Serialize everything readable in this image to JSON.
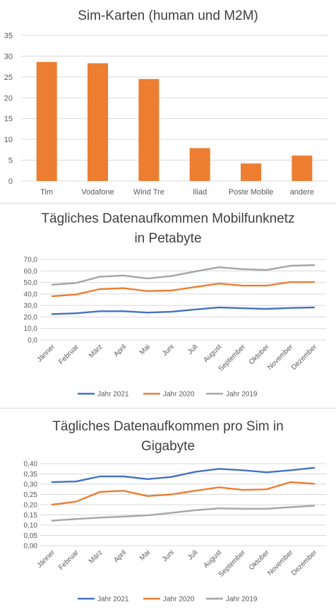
{
  "colors": {
    "bar": "#ed7d31",
    "series_2021": "#4472c4",
    "series_2020": "#ed7d31",
    "series_2019": "#a5a5a5",
    "grid": "#d9d9d9",
    "text": "#595959"
  },
  "chart_data": [
    {
      "type": "bar",
      "title": "Sim-Karten (human und M2M)",
      "categories": [
        "Tim",
        "Vodafone",
        "Wind Tre",
        "Iliad",
        "Poste Mobile",
        "andere"
      ],
      "values": [
        28.6,
        28.3,
        24.5,
        7.9,
        4.2,
        6.1
      ],
      "ylim": [
        0,
        35
      ],
      "yticks": [
        "0",
        "5",
        "10",
        "15",
        "20",
        "25",
        "30",
        "35"
      ],
      "grid": true
    },
    {
      "type": "line",
      "title_line1": "Tägliches Datenaufkommen Mobilfunknetz",
      "title_line2": "in Petabyte",
      "categories": [
        "Jänner",
        "Februar",
        "März",
        "April",
        "Mai",
        "Juni",
        "Juli",
        "August",
        "September",
        "Oktober",
        "November",
        "Dezember"
      ],
      "series": [
        {
          "name": "Jahr 2021",
          "values": [
            22.5,
            23.2,
            25.0,
            25.0,
            23.8,
            24.5,
            26.5,
            28.3,
            27.6,
            27.0,
            27.8,
            28.3
          ]
        },
        {
          "name": "Jahr 2020",
          "values": [
            38.0,
            39.5,
            44.2,
            45.0,
            42.5,
            43.0,
            46.0,
            49.0,
            47.2,
            47.2,
            50.3,
            50.3
          ]
        },
        {
          "name": "Jahr 2019",
          "values": [
            48.0,
            49.5,
            55.0,
            56.0,
            53.5,
            55.5,
            59.5,
            63.2,
            61.5,
            60.8,
            64.5,
            65.0
          ]
        }
      ],
      "ylim": [
        0,
        70
      ],
      "yticks": [
        "0,0",
        "10,0",
        "20,0",
        "30,0",
        "40,0",
        "50,0",
        "60,0",
        "70,0"
      ],
      "legend": "bottom",
      "grid": true
    },
    {
      "type": "line",
      "title_line1": "Tägliches Datenaufkommen pro Sim in",
      "title_line2": "Gigabyte",
      "categories": [
        "Jänner",
        "Februar",
        "März",
        "April",
        "Mai",
        "Juni",
        "Juli",
        "August",
        "September",
        "Oktober",
        "November",
        "Dezember"
      ],
      "series": [
        {
          "name": "Jahr 2021",
          "values": [
            0.31,
            0.313,
            0.338,
            0.338,
            0.325,
            0.335,
            0.36,
            0.375,
            0.368,
            0.358,
            0.368,
            0.38
          ]
        },
        {
          "name": "Jahr 2020",
          "values": [
            0.2,
            0.215,
            0.262,
            0.268,
            0.242,
            0.25,
            0.268,
            0.285,
            0.272,
            0.275,
            0.31,
            0.302
          ]
        },
        {
          "name": "Jahr 2019",
          "values": [
            0.122,
            0.13,
            0.137,
            0.142,
            0.148,
            0.16,
            0.173,
            0.182,
            0.18,
            0.18,
            0.188,
            0.195
          ]
        }
      ],
      "ylim": [
        0,
        0.4
      ],
      "yticks": [
        "0,00",
        "0,05",
        "0,10",
        "0,15",
        "0,20",
        "0,25",
        "0,30",
        "0,35",
        "0,40"
      ],
      "legend": "bottom",
      "grid": true
    }
  ]
}
